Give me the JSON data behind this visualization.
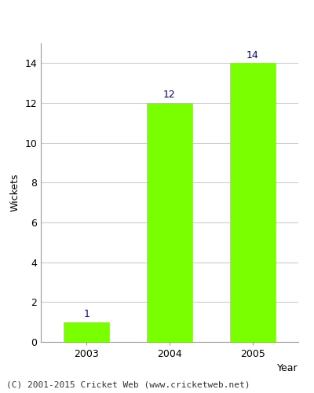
{
  "categories": [
    "2003",
    "2004",
    "2005"
  ],
  "values": [
    1,
    12,
    14
  ],
  "bar_color": "#7aff00",
  "bar_edge_color": "#7aff00",
  "label_color": "#00008b",
  "label_fontsize": 9,
  "xlabel": "Year",
  "ylabel": "Wickets",
  "ylim": [
    0,
    15.0
  ],
  "yticks": [
    0,
    2,
    4,
    6,
    8,
    10,
    12,
    14
  ],
  "grid_color": "#cccccc",
  "background_color": "#ffffff",
  "footer": "(C) 2001-2015 Cricket Web (www.cricketweb.net)",
  "footer_fontsize": 8,
  "axis_label_fontsize": 9,
  "tick_fontsize": 9,
  "bar_width": 0.55
}
